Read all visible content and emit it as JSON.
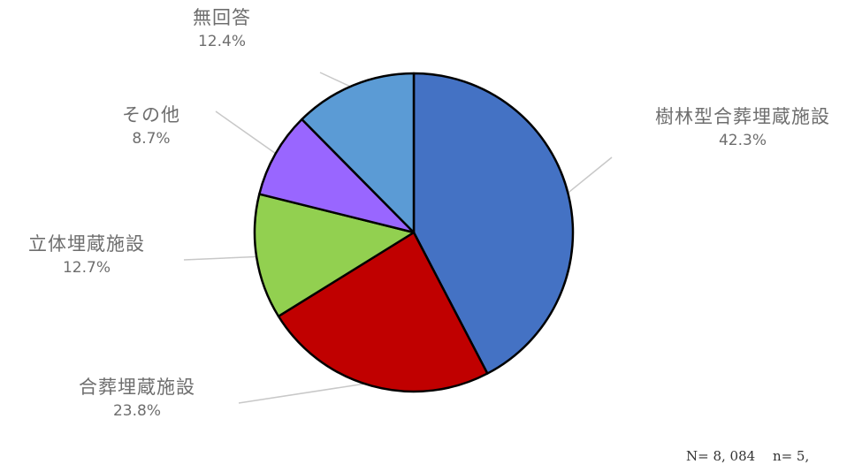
{
  "chart_data": {
    "type": "pie",
    "slices": [
      {
        "label": "樹林型合葬埋蔵施設",
        "value": 42.3,
        "value_label": "42.3%",
        "color": "#4472c4"
      },
      {
        "label": "合葬埋蔵施設",
        "value": 23.8,
        "value_label": "23.8%",
        "color": "#c00000"
      },
      {
        "label": "立体埋蔵施設",
        "value": 12.7,
        "value_label": "12.7%",
        "color": "#92d050"
      },
      {
        "label": "その他",
        "value": 8.7,
        "value_label": "8.7%",
        "color": "#9966ff"
      },
      {
        "label": "無回答",
        "value": 12.4,
        "value_label": "12.4%",
        "color": "#5b9bd5"
      }
    ],
    "footnote": "N= 8, 084　 n= 5,"
  }
}
